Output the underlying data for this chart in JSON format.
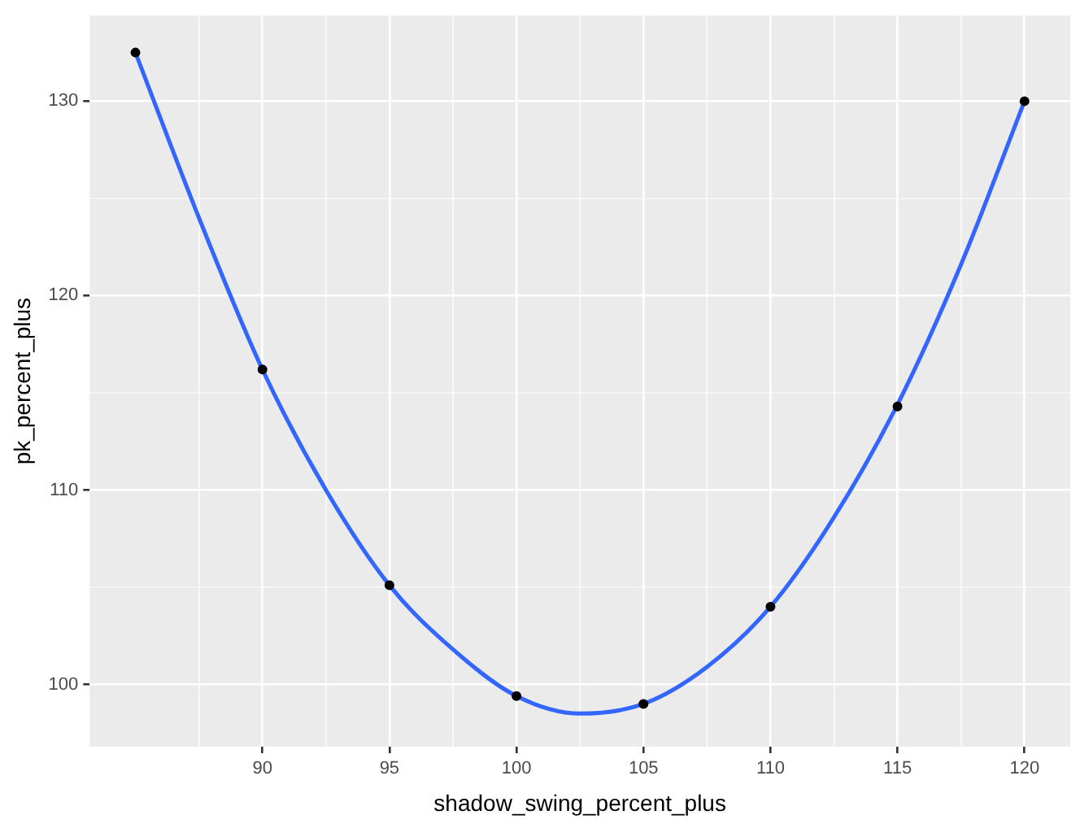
{
  "chart_data": {
    "type": "scatter",
    "xlabel": "shadow_swing_percent_plus",
    "ylabel": "pk_percent_plus",
    "x": [
      85,
      90,
      95,
      100,
      105,
      110,
      115,
      120
    ],
    "series": [
      {
        "color": "#000000",
        "values": [
          132.5,
          116.2,
          105.1,
          99.4,
          99.0,
          104.0,
          114.3,
          130.0
        ]
      },
      {
        "type": "line",
        "marker": "none",
        "color": "#3366ff",
        "x": [
          85,
          87.5,
          90,
          92.5,
          95,
          97.5,
          100,
          102.5,
          105,
          107.5,
          110,
          112.5,
          115,
          117.5,
          120
        ],
        "values": [
          132.5,
          124.0,
          116.2,
          110.0,
          105.1,
          101.8,
          99.4,
          98.5,
          99.0,
          100.9,
          104.0,
          108.6,
          114.4,
          121.6,
          130.0
        ]
      }
    ],
    "xlim": [
      83.2,
      121.8
    ],
    "ylim": [
      96.8,
      134.4
    ],
    "xticks": [
      {
        "value": 87.5,
        "label": null
      },
      90,
      {
        "value": 92.5,
        "label": null
      },
      95,
      {
        "value": 97.5,
        "label": null
      },
      100,
      {
        "value": 102.5,
        "label": null
      },
      105,
      {
        "value": 107.5,
        "label": null
      },
      110,
      {
        "value": 112.5,
        "label": null
      },
      115,
      {
        "value": 117.5,
        "label": null
      },
      120
    ],
    "yticks": [
      100,
      {
        "value": 105,
        "label": null
      },
      110,
      {
        "value": 115,
        "label": null
      },
      120,
      {
        "value": 125,
        "label": null
      },
      130
    ],
    "grid": true,
    "legend": false,
    "marker": "circle",
    "line_style": "solid"
  }
}
